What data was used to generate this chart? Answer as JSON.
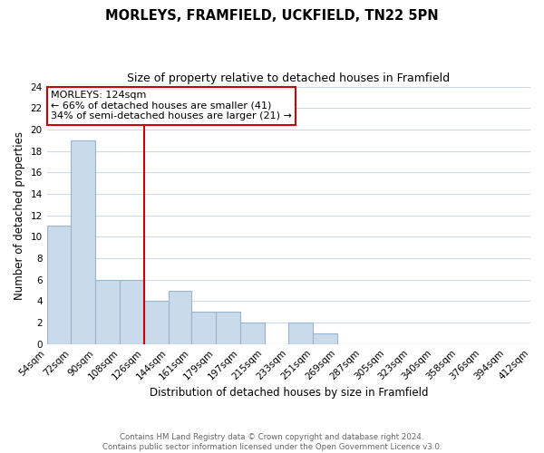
{
  "title": "MORLEYS, FRAMFIELD, UCKFIELD, TN22 5PN",
  "subtitle": "Size of property relative to detached houses in Framfield",
  "xlabel": "Distribution of detached houses by size in Framfield",
  "ylabel": "Number of detached properties",
  "bin_labels": [
    "54sqm",
    "72sqm",
    "90sqm",
    "108sqm",
    "126sqm",
    "144sqm",
    "161sqm",
    "179sqm",
    "197sqm",
    "215sqm",
    "233sqm",
    "251sqm",
    "269sqm",
    "287sqm",
    "305sqm",
    "323sqm",
    "340sqm",
    "358sqm",
    "376sqm",
    "394sqm",
    "412sqm"
  ],
  "bin_edges": [
    54,
    72,
    90,
    108,
    126,
    144,
    161,
    179,
    197,
    215,
    233,
    251,
    269,
    287,
    305,
    323,
    340,
    358,
    376,
    394,
    412
  ],
  "bar_counts": [
    11,
    19,
    6,
    6,
    4,
    5,
    3,
    3,
    2,
    0,
    2,
    1,
    0,
    0,
    0,
    0,
    0,
    0,
    0,
    0
  ],
  "bar_color": "#c9daea",
  "bar_edge_color": "#9ab5cb",
  "vline_x": 126,
  "vline_color": "#cc0000",
  "ylim": [
    0,
    24
  ],
  "yticks": [
    0,
    2,
    4,
    6,
    8,
    10,
    12,
    14,
    16,
    18,
    20,
    22,
    24
  ],
  "annotation_title": "MORLEYS: 124sqm",
  "annotation_line1": "← 66% of detached houses are smaller (41)",
  "annotation_line2": "34% of semi-detached houses are larger (21) →",
  "annotation_box_color": "#ffffff",
  "annotation_box_edgecolor": "#cc0000",
  "footer_line1": "Contains HM Land Registry data © Crown copyright and database right 2024.",
  "footer_line2": "Contains public sector information licensed under the Open Government Licence v3.0.",
  "background_color": "#ffffff",
  "grid_color": "#cddae6"
}
